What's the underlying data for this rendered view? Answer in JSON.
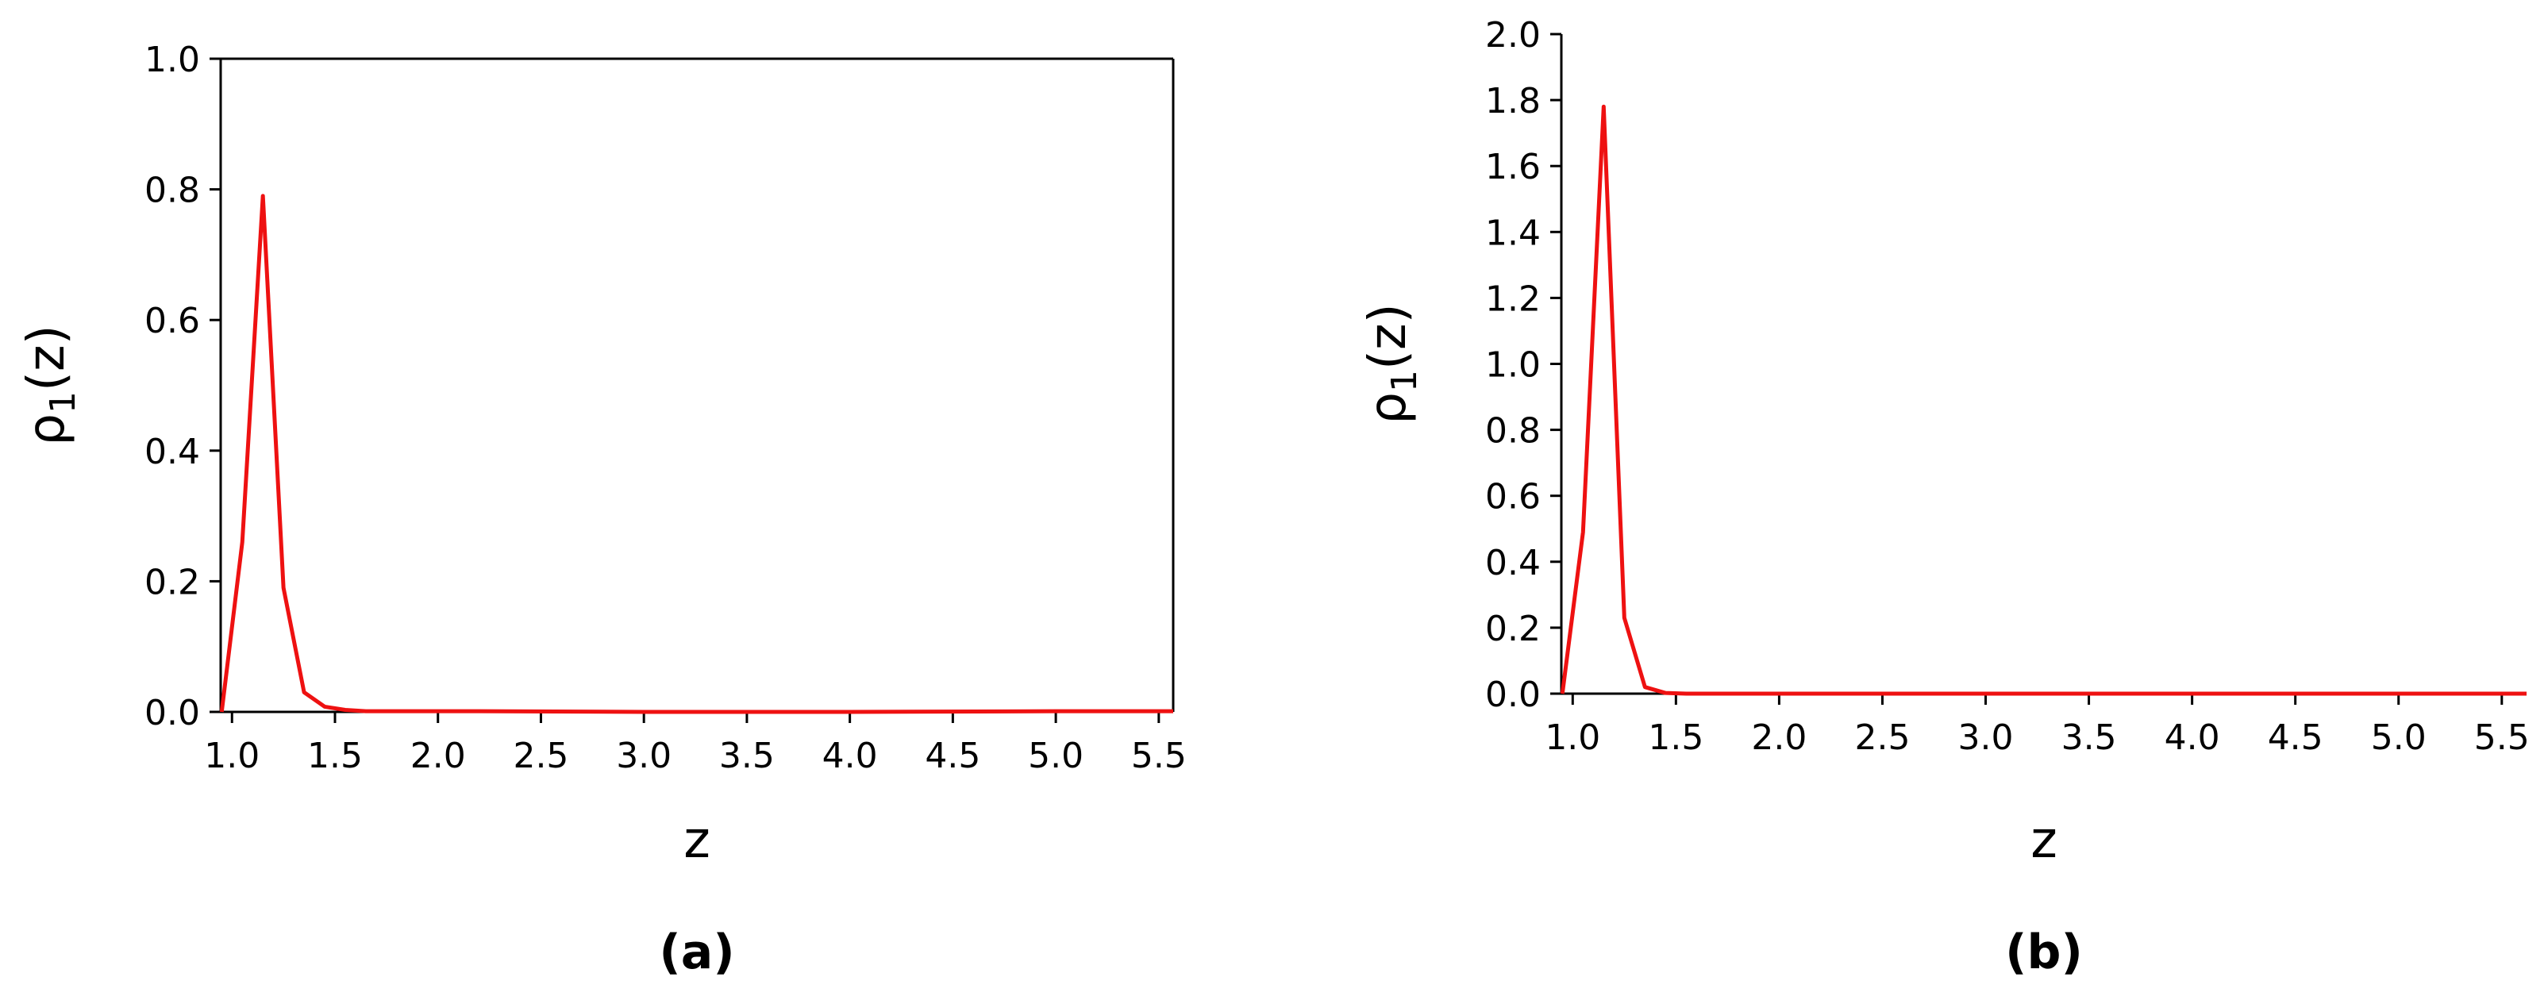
{
  "chart_data": [
    {
      "type": "line",
      "caption": "(a)",
      "xlabel": "z",
      "ylabel": [
        "ρ",
        "1",
        "(z)"
      ],
      "box": true,
      "xlim": [
        0.945,
        5.57
      ],
      "ylim": [
        0,
        1
      ],
      "xticks": [
        {
          "value": 1,
          "label": "1.0"
        },
        1.5,
        {
          "value": 2,
          "label": "2.0"
        },
        2.5,
        {
          "value": 3,
          "label": "3.0"
        },
        3.5,
        {
          "value": 4,
          "label": "4.0"
        },
        4.5,
        {
          "value": 5,
          "label": "5.0"
        },
        5.5
      ],
      "yticks": [
        {
          "value": 0,
          "label": "0.0"
        },
        0.2,
        0.4,
        0.6,
        0.8,
        {
          "value": 1,
          "label": "1.0"
        }
      ],
      "x": [
        0.95,
        1.05,
        1.15,
        1.25,
        1.35,
        1.45,
        1.55,
        1.65,
        2.2,
        3.0,
        4.0,
        5.0,
        5.57
      ],
      "series": [
        {
          "name": "ρ1(z)",
          "color": "#ee1111",
          "values": [
            0,
            0.26,
            0.79,
            0.19,
            0.03,
            0.008,
            0.003,
            0.001,
            0.001,
            0,
            0,
            0.001,
            0.001
          ]
        }
      ]
    },
    {
      "type": "line",
      "caption": "(b)",
      "xlabel": "z",
      "ylabel": [
        "ρ",
        "1",
        "(z)"
      ],
      "box": false,
      "xlim": [
        0.945,
        5.62
      ],
      "ylim": [
        0,
        2
      ],
      "xticks": [
        {
          "value": 1,
          "label": "1.0"
        },
        1.5,
        {
          "value": 2,
          "label": "2.0"
        },
        2.5,
        {
          "value": 3,
          "label": "3.0"
        },
        3.5,
        {
          "value": 4,
          "label": "4.0"
        },
        4.5,
        {
          "value": 5,
          "label": "5.0"
        },
        5.5
      ],
      "yticks": [
        {
          "value": 0,
          "label": "0.0"
        },
        0.2,
        0.4,
        0.6,
        0.8,
        {
          "value": 1,
          "label": "1.0"
        },
        1.2,
        1.4,
        1.6,
        1.8,
        {
          "value": 2,
          "label": "2.0"
        }
      ],
      "x": [
        0.95,
        1.05,
        1.15,
        1.25,
        1.35,
        1.45,
        1.55,
        2.0,
        3.0,
        4.0,
        5.0,
        5.62
      ],
      "series": [
        {
          "name": "ρ1(z)",
          "color": "#ee1111",
          "values": [
            0,
            0.49,
            1.78,
            0.23,
            0.02,
            0.002,
            0,
            0,
            0,
            0,
            0,
            0
          ]
        }
      ]
    }
  ]
}
